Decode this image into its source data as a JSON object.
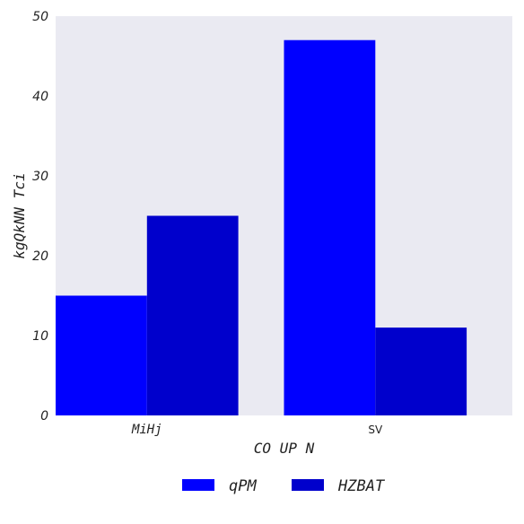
{
  "chart_data": {
    "type": "bar",
    "title": "",
    "xlabel": "CO UP N",
    "ylabel": "kgQkNN Tci",
    "categories": [
      "MiHj",
      "SV"
    ],
    "series": [
      {
        "name": "qPM",
        "values": [
          15,
          47
        ],
        "color": "#0000ff"
      },
      {
        "name": "HZBAT",
        "values": [
          25,
          11
        ],
        "color": "#0000cc"
      }
    ],
    "ylim": [
      0,
      50
    ],
    "yticks": [
      "0",
      "10",
      "20",
      "30",
      "40",
      "50"
    ],
    "grid": false,
    "legend_position": "bottom-center",
    "plot_background": "#eaeaf2"
  }
}
